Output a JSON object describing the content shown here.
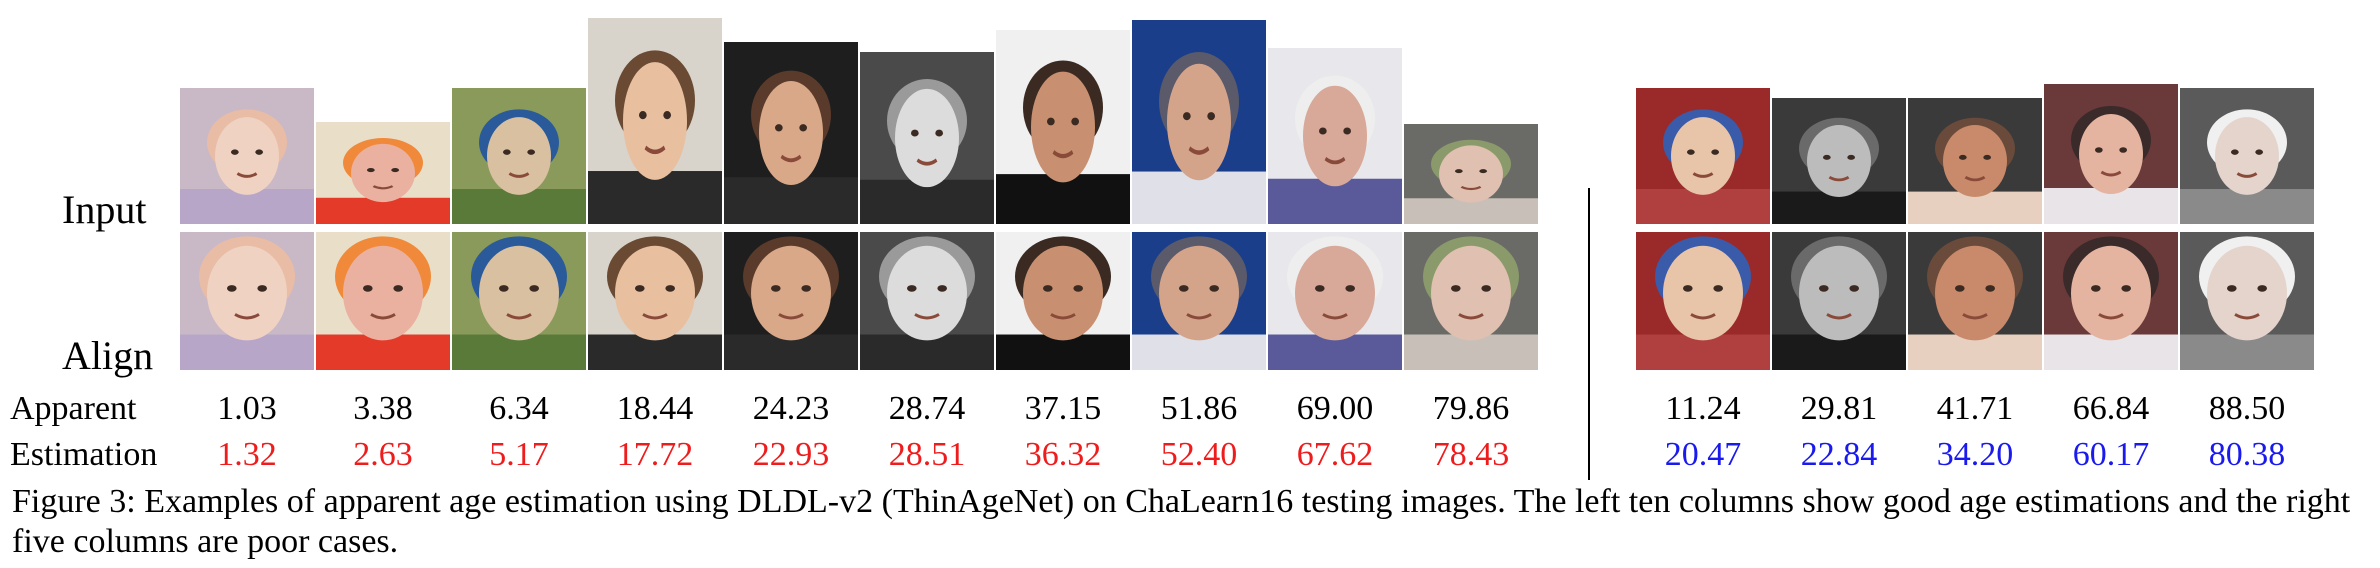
{
  "labels": {
    "input": "Input",
    "align": "Align",
    "apparent": "Apparent",
    "estimation": "Estimation"
  },
  "good_cases": [
    {
      "apparent": "1.03",
      "estimation": "1.32"
    },
    {
      "apparent": "3.38",
      "estimation": "2.63"
    },
    {
      "apparent": "6.34",
      "estimation": "5.17"
    },
    {
      "apparent": "18.44",
      "estimation": "17.72"
    },
    {
      "apparent": "24.23",
      "estimation": "22.93"
    },
    {
      "apparent": "28.74",
      "estimation": "28.51"
    },
    {
      "apparent": "37.15",
      "estimation": "36.32"
    },
    {
      "apparent": "51.86",
      "estimation": "52.40"
    },
    {
      "apparent": "69.00",
      "estimation": "67.62"
    },
    {
      "apparent": "79.86",
      "estimation": "78.43"
    }
  ],
  "poor_cases": [
    {
      "apparent": "11.24",
      "estimation": "20.47"
    },
    {
      "apparent": "29.81",
      "estimation": "22.84"
    },
    {
      "apparent": "41.71",
      "estimation": "34.20"
    },
    {
      "apparent": "66.84",
      "estimation": "60.17"
    },
    {
      "apparent": "88.50",
      "estimation": "80.38"
    }
  ],
  "colors": {
    "good_estimation": "#ee1c1c",
    "poor_estimation": "#1a1aee"
  },
  "caption": "Figure 3: Examples of apparent age estimation using DLDL-v2 (ThinAgeNet) on ChaLearn16 testing images. The left ten columns show good age estimations and the right five columns are poor cases."
}
